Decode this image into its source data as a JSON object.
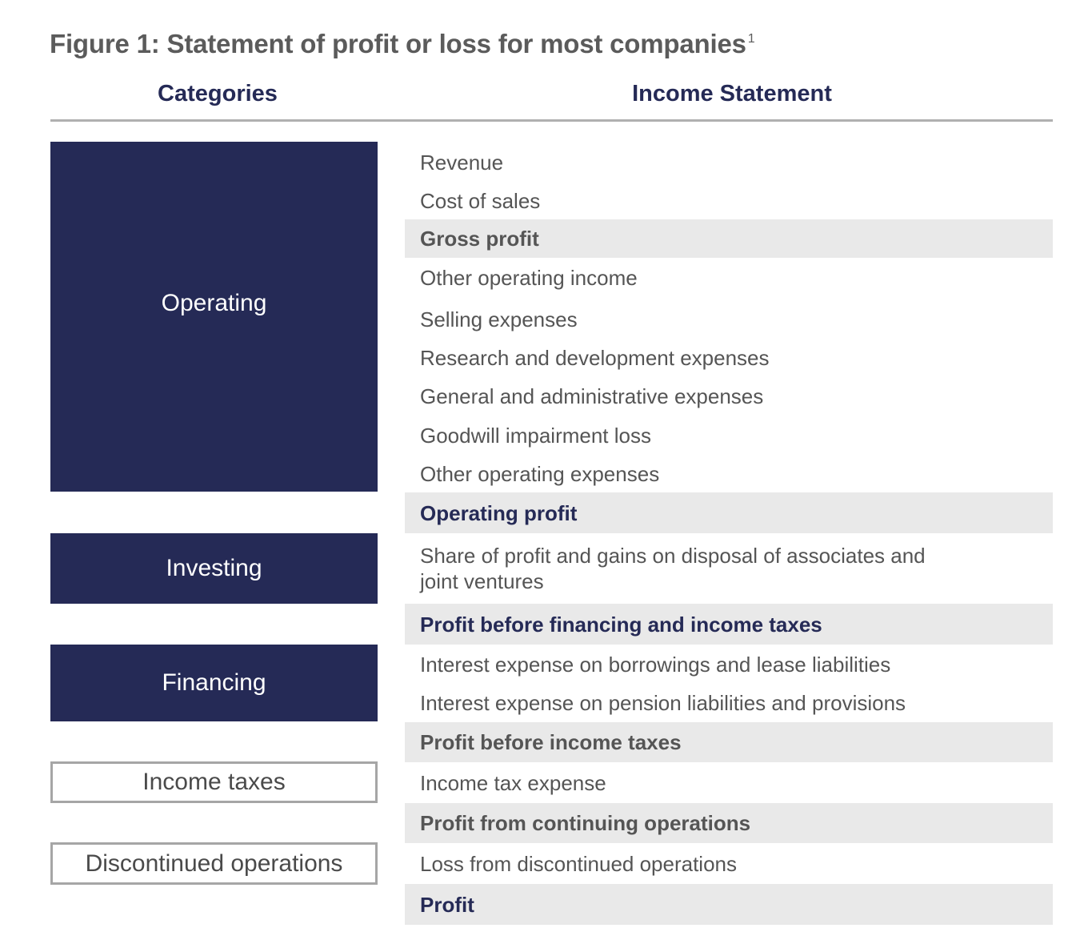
{
  "title": {
    "text": "Figure 1: Statement of profit or loss for most companies",
    "footnote": "1"
  },
  "headers": {
    "categories": "Categories",
    "income_statement": "Income Statement"
  },
  "categories": [
    {
      "label": "Operating",
      "style": "dark"
    },
    {
      "label": "Investing",
      "style": "dark"
    },
    {
      "label": "Financing",
      "style": "dark"
    },
    {
      "label": "Income taxes",
      "style": "outline"
    },
    {
      "label": "Discontinued operations",
      "style": "outline"
    }
  ],
  "rows": [
    {
      "label": "Revenue",
      "type": "item"
    },
    {
      "label": "Cost of sales",
      "type": "item"
    },
    {
      "label": "Gross profit",
      "type": "subtotal"
    },
    {
      "label": "Other operating income",
      "type": "item"
    },
    {
      "label": "Selling expenses",
      "type": "item"
    },
    {
      "label": "Research and development expenses",
      "type": "item"
    },
    {
      "label": "General and administrative expenses",
      "type": "item"
    },
    {
      "label": "Goodwill impairment loss",
      "type": "item"
    },
    {
      "label": "Other operating expenses",
      "type": "item"
    },
    {
      "label": "Operating profit",
      "type": "subtotal-highlight"
    },
    {
      "label": "Share of profit and gains on disposal of associates and joint ventures",
      "type": "item"
    },
    {
      "label": "Profit before financing and income taxes",
      "type": "subtotal-highlight"
    },
    {
      "label": "Interest expense on borrowings and lease liabilities",
      "type": "item"
    },
    {
      "label": "Interest expense on pension liabilities and provisions",
      "type": "item"
    },
    {
      "label": "Profit before income taxes",
      "type": "subtotal"
    },
    {
      "label": "Income tax expense",
      "type": "item"
    },
    {
      "label": "Profit from continuing operations",
      "type": "subtotal"
    },
    {
      "label": "Loss from discontinued operations",
      "type": "item"
    },
    {
      "label": "Profit",
      "type": "subtotal-highlight"
    }
  ],
  "colors": {
    "navy": "#252a56",
    "band": "#e9e9e9",
    "text_grey": "#555555",
    "outline": "#a6a6a6"
  }
}
